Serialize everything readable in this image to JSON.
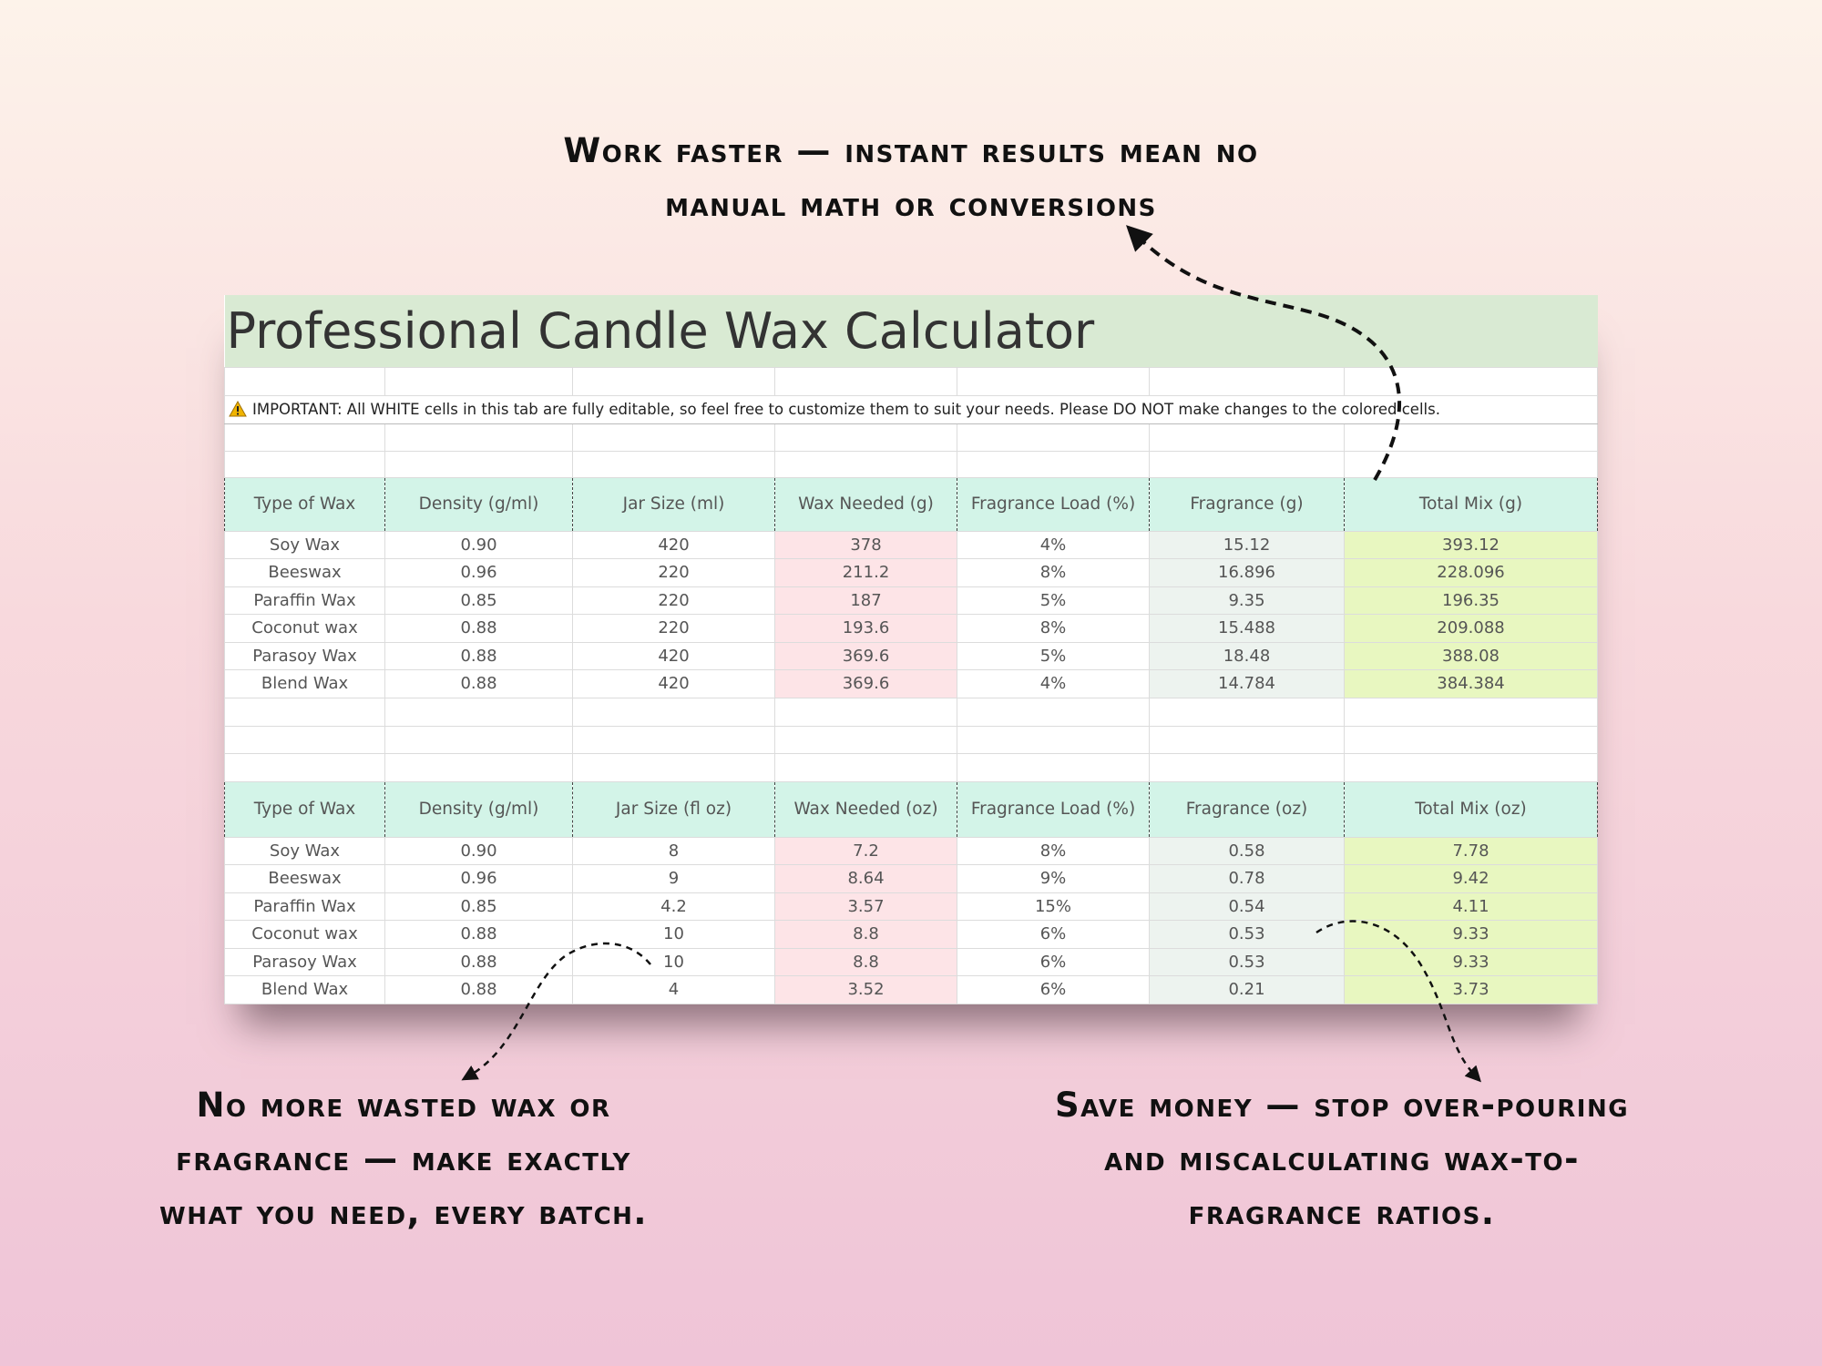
{
  "callouts": {
    "top": [
      "Work faster — instant results mean no",
      "manual math or conversions"
    ],
    "bottom_left": [
      "No more wasted wax or",
      "fragrance — make exactly",
      "what you need, every batch."
    ],
    "bottom_right": [
      "Save money — stop over-pouring",
      "and miscalculating wax-to-",
      "fragrance ratios."
    ]
  },
  "sheet": {
    "title": "Professional Candle Wax Calculator",
    "notice": "IMPORTANT: All WHITE cells in this tab are fully editable, so feel free to customize them to suit your needs. Please DO NOT make changes to the colored cells."
  },
  "table1": {
    "headers": [
      "Type of Wax",
      "Density (g/ml)",
      "Jar Size (ml)",
      "Wax Needed (g)",
      "Fragrance Load (%)",
      "Fragrance (g)",
      "Total Mix (g)"
    ],
    "rows": [
      [
        "Soy Wax",
        "0.90",
        "420",
        "378",
        "4%",
        "15.12",
        "393.12"
      ],
      [
        "Beeswax",
        "0.96",
        "220",
        "211.2",
        "8%",
        "16.896",
        "228.096"
      ],
      [
        "Paraffin Wax",
        "0.85",
        "220",
        "187",
        "5%",
        "9.35",
        "196.35"
      ],
      [
        "Coconut wax",
        "0.88",
        "220",
        "193.6",
        "8%",
        "15.488",
        "209.088"
      ],
      [
        "Parasoy Wax",
        "0.88",
        "420",
        "369.6",
        "5%",
        "18.48",
        "388.08"
      ],
      [
        "Blend Wax",
        "0.88",
        "420",
        "369.6",
        "4%",
        "14.784",
        "384.384"
      ]
    ]
  },
  "table2": {
    "headers": [
      "Type of Wax",
      "Density (g/ml)",
      "Jar Size (fl oz)",
      "Wax Needed (oz)",
      "Fragrance Load (%)",
      "Fragrance (oz)",
      "Total Mix (oz)"
    ],
    "rows": [
      [
        "Soy Wax",
        "0.90",
        "8",
        "7.2",
        "8%",
        "0.58",
        "7.78"
      ],
      [
        "Beeswax",
        "0.96",
        "9",
        "8.64",
        "9%",
        "0.78",
        "9.42"
      ],
      [
        "Paraffin Wax",
        "0.85",
        "4.2",
        "3.57",
        "15%",
        "0.54",
        "4.11"
      ],
      [
        "Coconut wax",
        "0.88",
        "10",
        "8.8",
        "6%",
        "0.53",
        "9.33"
      ],
      [
        "Parasoy Wax",
        "0.88",
        "10",
        "8.8",
        "6%",
        "0.53",
        "9.33"
      ],
      [
        "Blend Wax",
        "0.88",
        "4",
        "3.52",
        "6%",
        "0.21",
        "3.73"
      ]
    ]
  }
}
